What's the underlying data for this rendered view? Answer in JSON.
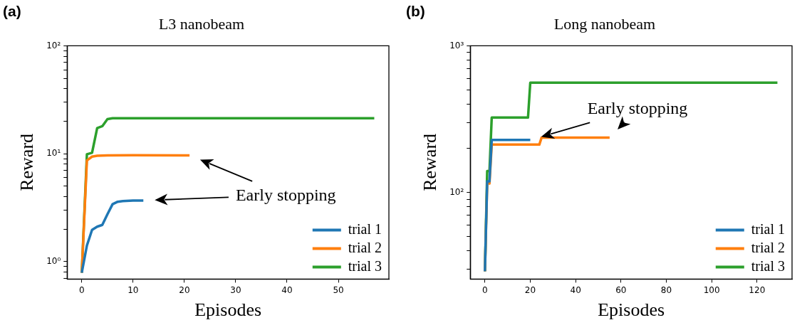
{
  "chart_data": [
    {
      "type": "line",
      "title": "L3 nanobeam",
      "xlabel": "Episodes",
      "ylabel": "Reward",
      "annotations": [
        "(a)",
        "Early stopping"
      ],
      "log": "y",
      "legend": "bottom right",
      "grid": false,
      "marker": "none",
      "line_style": "solid",
      "xlim": [
        -2.85,
        59.85
      ],
      "xticks": [
        0,
        10,
        20,
        30,
        40,
        50
      ],
      "ylim": [
        0.69,
        100
      ],
      "yticks": [
        {
          "value": 0.7,
          "label": null
        },
        {
          "value": 0.8,
          "label": null
        },
        {
          "value": 0.9,
          "label": null
        },
        {
          "value": 1,
          "label": "10⁰"
        },
        {
          "value": 2,
          "label": null
        },
        {
          "value": 3,
          "label": null
        },
        {
          "value": 4,
          "label": null
        },
        {
          "value": 5,
          "label": null
        },
        {
          "value": 6,
          "label": null
        },
        {
          "value": 7,
          "label": null
        },
        {
          "value": 8,
          "label": null
        },
        {
          "value": 9,
          "label": null
        },
        {
          "value": 10,
          "label": "10¹"
        },
        {
          "value": 20,
          "label": null
        },
        {
          "value": 30,
          "label": null
        },
        {
          "value": 40,
          "label": null
        },
        {
          "value": 50,
          "label": null
        },
        {
          "value": 60,
          "label": null
        },
        {
          "value": 70,
          "label": null
        },
        {
          "value": 80,
          "label": null
        },
        {
          "value": 90,
          "label": null
        },
        {
          "value": 100,
          "label": "10²"
        }
      ],
      "series": [
        {
          "name": "trial 1",
          "color": "#1f77b4",
          "x": [
            0,
            1,
            2,
            3,
            4,
            5,
            6,
            7,
            8,
            10,
            12
          ],
          "values": [
            0.79,
            1.41,
            1.97,
            2.11,
            2.19,
            2.75,
            3.41,
            3.59,
            3.64,
            3.69,
            3.69
          ]
        },
        {
          "name": "trial 2",
          "color": "#ff7f0e",
          "x": [
            0,
            1,
            2,
            3,
            5,
            10,
            21
          ],
          "values": [
            0.79,
            8.66,
            9.4,
            9.58,
            9.65,
            9.7,
            9.65
          ]
        },
        {
          "name": "trial 3",
          "color": "#2ca02c",
          "x": [
            0,
            1,
            2,
            3,
            4,
            5,
            6,
            57
          ],
          "values": [
            0.79,
            9.9,
            10.2,
            17.3,
            18,
            20.9,
            21.3,
            21.3
          ]
        }
      ]
    },
    {
      "type": "line",
      "title": "Long nanobeam",
      "xlabel": "Episodes",
      "ylabel": "Reward",
      "annotations": [
        "(b)",
        "Early stopping"
      ],
      "log": "y",
      "legend": "bottom right",
      "grid": false,
      "marker": "none",
      "line_style": "solid",
      "xlim": [
        -6.45,
        135.45
      ],
      "xticks": [
        0,
        20,
        40,
        60,
        80,
        100,
        120
      ],
      "ylim": [
        25.7,
        1000
      ],
      "yticks": [
        {
          "value": 30,
          "label": null
        },
        {
          "value": 40,
          "label": null
        },
        {
          "value": 50,
          "label": null
        },
        {
          "value": 60,
          "label": null
        },
        {
          "value": 70,
          "label": null
        },
        {
          "value": 80,
          "label": null
        },
        {
          "value": 90,
          "label": null
        },
        {
          "value": 100,
          "label": "10²"
        },
        {
          "value": 200,
          "label": null
        },
        {
          "value": 300,
          "label": null
        },
        {
          "value": 400,
          "label": null
        },
        {
          "value": 500,
          "label": null
        },
        {
          "value": 600,
          "label": null
        },
        {
          "value": 700,
          "label": null
        },
        {
          "value": 800,
          "label": null
        },
        {
          "value": 900,
          "label": null
        },
        {
          "value": 1000,
          "label": "10³"
        }
      ],
      "series": [
        {
          "name": "trial 1",
          "color": "#1f77b4",
          "x": [
            0,
            1,
            2,
            3,
            20
          ],
          "values": [
            29,
            119,
            119,
            228,
            228
          ]
        },
        {
          "name": "trial 2",
          "color": "#ff7f0e",
          "x": [
            0,
            1,
            2,
            3,
            24,
            25,
            55
          ],
          "values": [
            29,
            116,
            115,
            212,
            212,
            237,
            237
          ]
        },
        {
          "name": "trial 3",
          "color": "#2ca02c",
          "x": [
            0,
            1,
            2,
            3,
            19,
            20,
            129
          ],
          "values": [
            29,
            140,
            140,
            324,
            324,
            560,
            560
          ]
        }
      ]
    }
  ]
}
